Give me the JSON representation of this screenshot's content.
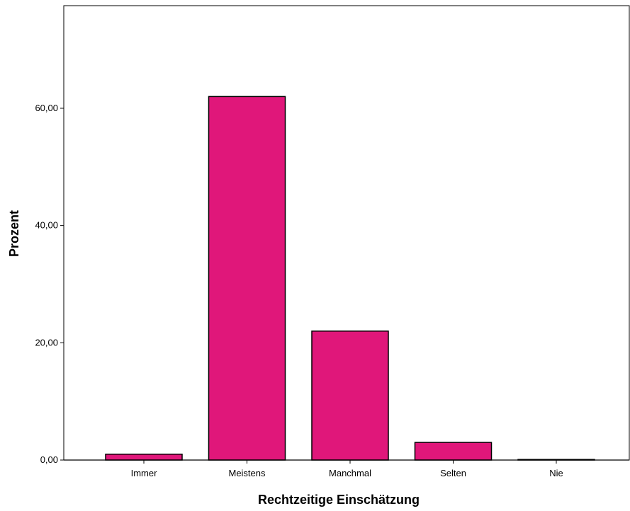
{
  "chart_data": {
    "type": "bar",
    "title": "",
    "xlabel": "Rechtzeitige Einschätzung",
    "ylabel": "Prozent",
    "categories": [
      "Immer",
      "Meistens",
      "Manchmal",
      "Selten",
      "Nie"
    ],
    "values": [
      1.0,
      62.0,
      22.0,
      3.0,
      0.1
    ],
    "ylim": [
      0,
      77.5
    ],
    "yticks": [
      0,
      20,
      40,
      60
    ],
    "ytick_labels": [
      "0,00",
      "20,00",
      "40,00",
      "60,00"
    ],
    "grid": false,
    "legend": "none",
    "colors": {
      "bar": "#E0177A",
      "outline": "#000000",
      "background": "#FFFFFF"
    }
  }
}
